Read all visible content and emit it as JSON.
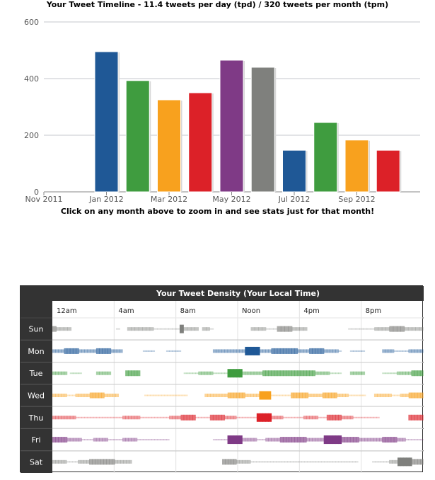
{
  "timeline": {
    "title": "Your Tweet Timeline - 11.4 tweets per day (tpd) / 320 tweets per month (tpm)",
    "hint": "Click on any month above to zoom in and see stats just for that month!"
  },
  "density": {
    "title": "Your Tweet Density (Your Local Time)"
  },
  "chart_data": [
    {
      "type": "bar",
      "title": "Your Tweet Timeline - 11.4 tweets per day (tpd) / 320 tweets per month (tpm)",
      "x_tick_labels": [
        "Nov 2011",
        "Jan 2012",
        "Mar 2012",
        "May 2012",
        "Jul 2012",
        "Sep 2012"
      ],
      "y_tick_labels": [
        "0",
        "200",
        "400",
        "600"
      ],
      "ylim": [
        0,
        600
      ],
      "grid": true,
      "categories": [
        "Jan 2012",
        "Feb 2012",
        "Mar 2012",
        "Apr 2012",
        "May 2012",
        "Jun 2012",
        "Jul 2012",
        "Aug 2012",
        "Sep 2012",
        "Oct 2012"
      ],
      "values": [
        495,
        393,
        325,
        350,
        465,
        440,
        147,
        245,
        183,
        147
      ],
      "colors": [
        "#1f5896",
        "#3f9c3f",
        "#f8a11e",
        "#dc2128",
        "#7f3a86",
        "#7f807d",
        "#1f5896",
        "#3f9c3f",
        "#f8a11e",
        "#dc2128"
      ]
    },
    {
      "type": "heatmap",
      "title": "Your Tweet Density (Your Local Time)",
      "rows": [
        "Sun",
        "Mon",
        "Tue",
        "Wed",
        "Thu",
        "Fri",
        "Sat"
      ],
      "hour_labels": [
        "12am",
        "4am",
        "8am",
        "Noon",
        "4pm",
        "8pm"
      ],
      "row_colors": [
        "#7f807d",
        "#1f5896",
        "#3f9c3f",
        "#f8a11e",
        "#dc2128",
        "#7f3a86",
        "#7f807d"
      ],
      "levels": [
        [
          3,
          2,
          2,
          2,
          2,
          0,
          0,
          0,
          0,
          0,
          0,
          0,
          0,
          0,
          0,
          0,
          0,
          1,
          0,
          0,
          2,
          2,
          2,
          2,
          2,
          2,
          2,
          1,
          1,
          1,
          1,
          1,
          1,
          1,
          4,
          2,
          2,
          2,
          2,
          0,
          2,
          2,
          1,
          0,
          0,
          0,
          0,
          0,
          0,
          0,
          0,
          0,
          0,
          2,
          2,
          2,
          2,
          1,
          1,
          1,
          3,
          3,
          3,
          3,
          2,
          2,
          2,
          2,
          0,
          0,
          0,
          0,
          0,
          0,
          0,
          0,
          0,
          0,
          0,
          1,
          1,
          1,
          1,
          1,
          1,
          1,
          2,
          2,
          2,
          2,
          3,
          3,
          3,
          3,
          2,
          2,
          2,
          2,
          2
        ],
        [
          2,
          2,
          2,
          2,
          3,
          3,
          3,
          3,
          3,
          2,
          2,
          2,
          2,
          2,
          2,
          3,
          3,
          3,
          3,
          3,
          2,
          2,
          2,
          2,
          0,
          0,
          0,
          0,
          0,
          0,
          0,
          1,
          1,
          1,
          1,
          0,
          0,
          0,
          0,
          1,
          1,
          1,
          1,
          1,
          0,
          0,
          0,
          0,
          0,
          0,
          0,
          0,
          0,
          0,
          0,
          2,
          2,
          2,
          2,
          2,
          2,
          2,
          2,
          2,
          2,
          2,
          4,
          4,
          4,
          4,
          4,
          2,
          2,
          2,
          2,
          3,
          3,
          3,
          3,
          3,
          3,
          3,
          3,
          3,
          2,
          2,
          2,
          2,
          3,
          3,
          3,
          3,
          3,
          2,
          2,
          2,
          2,
          2,
          1,
          0,
          0,
          0,
          1,
          1,
          1,
          1,
          1,
          0,
          0,
          0,
          0,
          0,
          0,
          2,
          2,
          2,
          2,
          1,
          1,
          1,
          1,
          1,
          2,
          2,
          2,
          2,
          2
        ],
        [
          2,
          2,
          2,
          2,
          2,
          0,
          1,
          1,
          1,
          1,
          0,
          0,
          0,
          0,
          0,
          2,
          2,
          2,
          2,
          2,
          0,
          0,
          0,
          0,
          0,
          3,
          3,
          3,
          3,
          3,
          0,
          0,
          0,
          0,
          0,
          0,
          0,
          0,
          0,
          0,
          0,
          0,
          0,
          0,
          0,
          1,
          1,
          1,
          1,
          1,
          2,
          2,
          2,
          2,
          2,
          1,
          1,
          1,
          1,
          1,
          4,
          4,
          4,
          4,
          4,
          2,
          2,
          2,
          2,
          2,
          2,
          2,
          3,
          3,
          3,
          3,
          3,
          3,
          3,
          3,
          3,
          3,
          3,
          3,
          3,
          3,
          3,
          3,
          3,
          3,
          2,
          2,
          2,
          2,
          2,
          1,
          1,
          1,
          1,
          0,
          0,
          0,
          2,
          2,
          2,
          2,
          2,
          0,
          0,
          0,
          0,
          0,
          0,
          1,
          1,
          1,
          1,
          1,
          2,
          2,
          2,
          2,
          2,
          3,
          3,
          3,
          3
        ],
        [
          2,
          2,
          2,
          2,
          2,
          1,
          1,
          1,
          2,
          2,
          2,
          2,
          2,
          3,
          3,
          3,
          3,
          3,
          2,
          2,
          2,
          2,
          2,
          0,
          0,
          0,
          0,
          0,
          0,
          0,
          0,
          0,
          1,
          1,
          1,
          1,
          1,
          1,
          1,
          1,
          1,
          1,
          1,
          1,
          1,
          1,
          1,
          0,
          0,
          0,
          0,
          0,
          0,
          2,
          2,
          2,
          2,
          2,
          2,
          2,
          2,
          3,
          3,
          3,
          3,
          3,
          3,
          2,
          2,
          2,
          2,
          2,
          4,
          4,
          4,
          4,
          1,
          1,
          1,
          1,
          1,
          1,
          1,
          3,
          3,
          3,
          3,
          3,
          3,
          2,
          2,
          2,
          2,
          2,
          3,
          3,
          3,
          3,
          3,
          2,
          2,
          2,
          2,
          1,
          1,
          1,
          1,
          1,
          1,
          0,
          0,
          0,
          2,
          2,
          2,
          2,
          2,
          2,
          1,
          1,
          1,
          2,
          2,
          2,
          3,
          3,
          3,
          3,
          3
        ],
        [
          2,
          2,
          2,
          2,
          2,
          2,
          2,
          2,
          1,
          1,
          1,
          1,
          1,
          1,
          1,
          1,
          1,
          1,
          1,
          1,
          1,
          1,
          1,
          1,
          2,
          2,
          2,
          2,
          2,
          2,
          1,
          1,
          1,
          1,
          1,
          1,
          1,
          1,
          1,
          1,
          2,
          2,
          2,
          2,
          3,
          3,
          3,
          3,
          3,
          1,
          1,
          1,
          1,
          1,
          3,
          3,
          3,
          3,
          3,
          2,
          2,
          2,
          2,
          1,
          1,
          1,
          1,
          1,
          1,
          1,
          4,
          4,
          4,
          4,
          4,
          2,
          2,
          2,
          2,
          1,
          1,
          1,
          1,
          1,
          1,
          1,
          2,
          2,
          2,
          2,
          2,
          1,
          1,
          1,
          3,
          3,
          3,
          3,
          3,
          2,
          2,
          2,
          2,
          1,
          1,
          1,
          1,
          1,
          1,
          1,
          1,
          1,
          0,
          0,
          0,
          0,
          0,
          0,
          0,
          0,
          0,
          0,
          3,
          3,
          3,
          3,
          3
        ],
        [
          3,
          3,
          3,
          3,
          3,
          2,
          2,
          2,
          2,
          2,
          1,
          1,
          1,
          1,
          2,
          2,
          2,
          2,
          2,
          1,
          1,
          1,
          1,
          1,
          2,
          2,
          2,
          2,
          2,
          1,
          1,
          1,
          1,
          1,
          1,
          1,
          1,
          1,
          1,
          1,
          0,
          0,
          0,
          0,
          0,
          0,
          0,
          0,
          0,
          0,
          0,
          0,
          0,
          0,
          0,
          1,
          1,
          1,
          1,
          1,
          4,
          4,
          4,
          4,
          4,
          2,
          2,
          2,
          2,
          2,
          1,
          1,
          1,
          2,
          2,
          2,
          2,
          2,
          3,
          3,
          3,
          3,
          3,
          3,
          3,
          3,
          3,
          2,
          2,
          2,
          2,
          2,
          2,
          4,
          4,
          4,
          4,
          4,
          4,
          3,
          3,
          3,
          3,
          3,
          3,
          2,
          2,
          2,
          2,
          2,
          2,
          2,
          2,
          3,
          3,
          3,
          3,
          3,
          2,
          2,
          2,
          1,
          1,
          1,
          1,
          1,
          1
        ],
        [
          2,
          2,
          2,
          2,
          2,
          1,
          1,
          1,
          1,
          2,
          2,
          2,
          2,
          3,
          3,
          3,
          3,
          3,
          3,
          3,
          3,
          3,
          2,
          2,
          2,
          2,
          2,
          2,
          0,
          0,
          0,
          0,
          0,
          0,
          0,
          0,
          0,
          0,
          0,
          0,
          0,
          0,
          0,
          0,
          0,
          0,
          0,
          0,
          0,
          0,
          0,
          0,
          0,
          0,
          0,
          0,
          0,
          0,
          0,
          0,
          3,
          3,
          3,
          3,
          3,
          2,
          2,
          2,
          2,
          2,
          1,
          1,
          1,
          1,
          1,
          1,
          1,
          1,
          1,
          1,
          1,
          1,
          1,
          1,
          1,
          1,
          1,
          1,
          1,
          1,
          1,
          1,
          1,
          1,
          1,
          1,
          1,
          1,
          1,
          1,
          1,
          1,
          1,
          1,
          1,
          1,
          1,
          1,
          0,
          0,
          0,
          0,
          0,
          1,
          1,
          1,
          1,
          1,
          1,
          2,
          2,
          2,
          4,
          4,
          4,
          4,
          4,
          3,
          3,
          3,
          3
        ]
      ]
    }
  ]
}
